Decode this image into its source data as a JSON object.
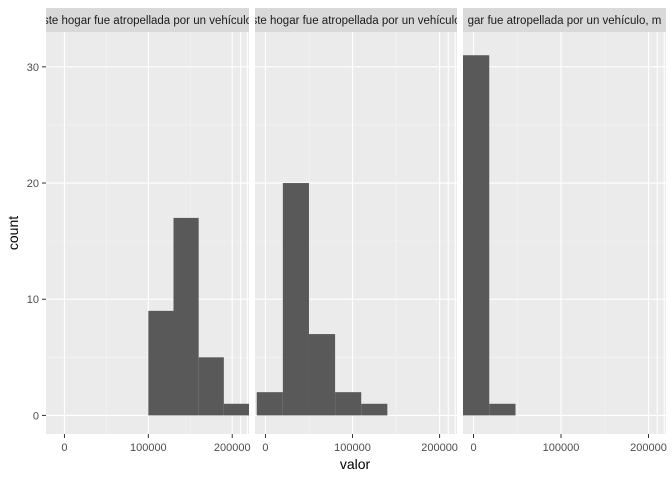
{
  "chart_data": {
    "type": "bar",
    "xlabel": "valor",
    "ylabel": "count",
    "ylim": [
      -1.6,
      33
    ],
    "y_ticks": [
      0,
      10,
      20,
      30
    ],
    "x_tick_labels": [
      "0",
      "100000",
      "200000"
    ],
    "grid": true,
    "panels": [
      {
        "strip_label": "ste hogar fue atropellada por un vehículo",
        "xlim": [
          -22000,
          220000
        ],
        "bins": [
          {
            "x_start": 100000,
            "x_end": 130000,
            "count": 9
          },
          {
            "x_start": 130000,
            "x_end": 160000,
            "count": 17
          },
          {
            "x_start": 160000,
            "x_end": 190000,
            "count": 5
          },
          {
            "x_start": 190000,
            "x_end": 220000,
            "count": 1
          }
        ]
      },
      {
        "strip_label": "ste hogar fue atropellada por un vehículo",
        "xlim": [
          -12000,
          220000
        ],
        "bins": [
          {
            "x_start": -10000,
            "x_end": 20000,
            "count": 2
          },
          {
            "x_start": 20000,
            "x_end": 50000,
            "count": 20
          },
          {
            "x_start": 50000,
            "x_end": 80000,
            "count": 7
          },
          {
            "x_start": 80000,
            "x_end": 110000,
            "count": 2
          },
          {
            "x_start": 110000,
            "x_end": 140000,
            "count": 1
          }
        ]
      },
      {
        "strip_label": "gar fue atropellada por un vehículo, m",
        "xlim": [
          -12000,
          220000
        ],
        "bins": [
          {
            "x_start": -12000,
            "x_end": 18000,
            "count": 31
          },
          {
            "x_start": 18000,
            "x_end": 48000,
            "count": 1
          }
        ]
      }
    ]
  }
}
